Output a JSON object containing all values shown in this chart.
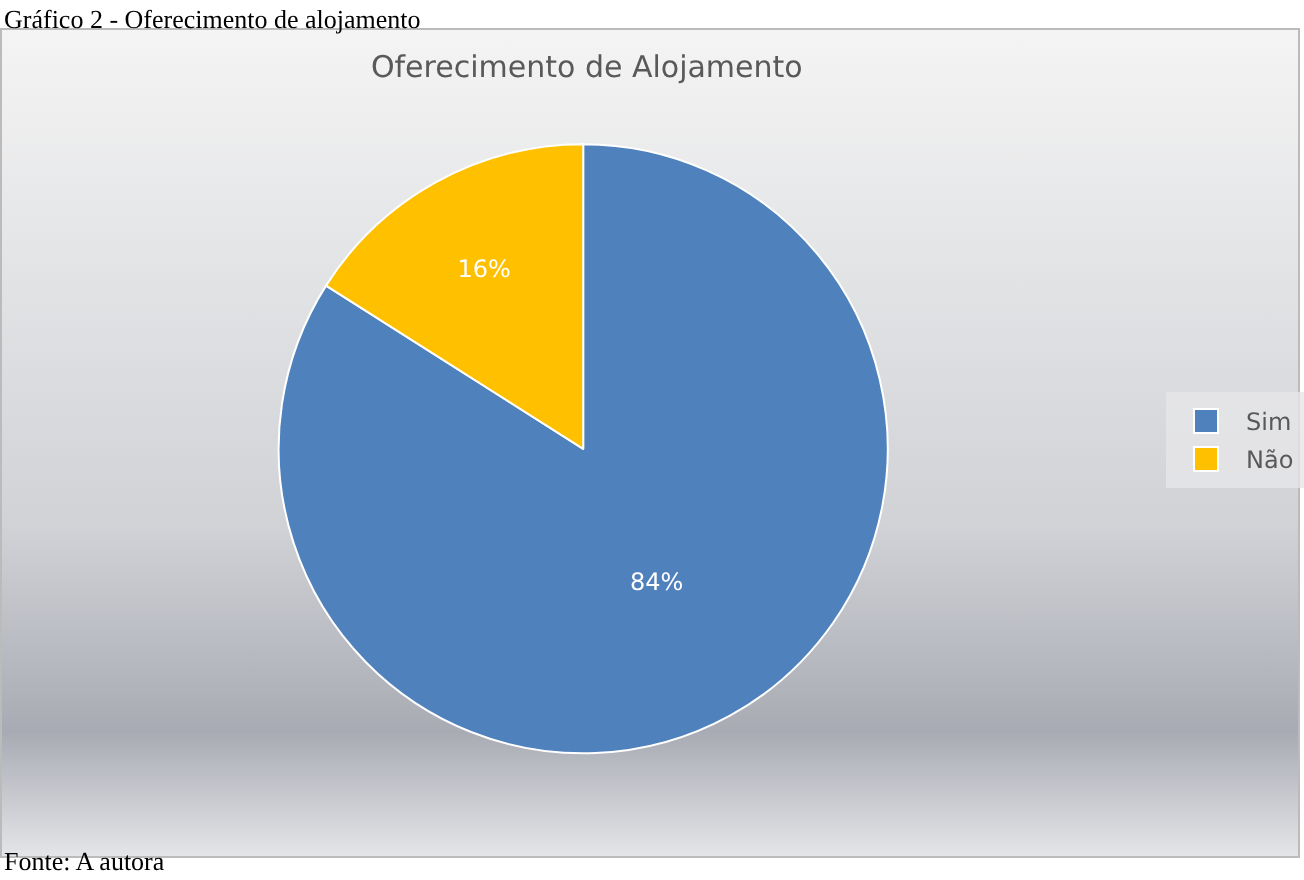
{
  "chart_data": {
    "type": "pie",
    "title": "Oferecimento de Alojamento",
    "categories": [
      "Sim",
      "Não"
    ],
    "values": [
      84,
      16
    ],
    "colors": [
      "#4f81bd",
      "#ffc000"
    ],
    "value_labels": [
      "84%",
      "16%"
    ],
    "legend": "right",
    "annotations": [
      "Gráfico 2 - Oferecimento de alojamento",
      "Fonte: A autora"
    ]
  }
}
